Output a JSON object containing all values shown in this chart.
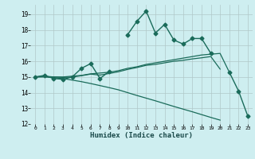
{
  "xlabel": "Humidex (Indice chaleur)",
  "bg_color": "#ceeef0",
  "grid_color": "#b0c8c8",
  "line_color": "#1a6b5a",
  "xlim": [
    -0.5,
    23.5
  ],
  "ylim": [
    12,
    19.6
  ],
  "yticks": [
    12,
    13,
    14,
    15,
    16,
    17,
    18,
    19
  ],
  "xticks": [
    0,
    1,
    2,
    3,
    4,
    5,
    6,
    7,
    8,
    9,
    10,
    11,
    12,
    13,
    14,
    15,
    16,
    17,
    18,
    19,
    20,
    21,
    22,
    23
  ],
  "series": [
    {
      "x": [
        0,
        1,
        2,
        3,
        4,
        5,
        6,
        7,
        8,
        9,
        10,
        11,
        12,
        13,
        14,
        15,
        16,
        17,
        18,
        19,
        20,
        21,
        22,
        23
      ],
      "y": [
        15.0,
        15.1,
        14.9,
        14.85,
        15.0,
        15.55,
        15.85,
        14.9,
        15.35,
        null,
        17.7,
        18.55,
        19.2,
        17.8,
        18.35,
        17.35,
        17.1,
        17.45,
        17.45,
        16.5,
        null,
        15.3,
        14.1,
        12.5
      ],
      "marker": "D",
      "markersize": 2.5,
      "linewidth": 1.0
    },
    {
      "x": [
        0,
        1,
        2,
        3,
        4,
        5,
        6,
        7,
        8,
        9,
        10,
        11,
        12,
        13,
        14,
        15,
        16,
        17,
        18,
        19,
        20,
        21
      ],
      "y": [
        15.0,
        15.05,
        15.0,
        15.0,
        15.05,
        15.1,
        15.2,
        15.25,
        15.3,
        15.4,
        15.55,
        15.65,
        15.8,
        15.9,
        16.0,
        16.1,
        16.2,
        16.3,
        16.4,
        16.45,
        16.5,
        15.3
      ],
      "marker": null,
      "markersize": 0,
      "linewidth": 0.9
    },
    {
      "x": [
        0,
        1,
        2,
        3,
        4,
        5,
        6,
        7,
        8,
        9,
        10,
        11,
        12,
        13,
        14,
        15,
        16,
        17,
        18,
        19,
        20,
        21
      ],
      "y": [
        15.0,
        15.0,
        14.95,
        14.9,
        14.8,
        14.7,
        14.58,
        14.45,
        14.32,
        14.18,
        14.0,
        13.82,
        13.65,
        13.48,
        13.3,
        13.12,
        12.95,
        12.78,
        12.6,
        12.42,
        12.25,
        null
      ],
      "marker": null,
      "markersize": 0,
      "linewidth": 0.9
    },
    {
      "x": [
        0,
        1,
        2,
        3,
        4,
        5,
        6,
        7,
        8,
        9,
        10,
        11,
        12,
        13,
        14,
        15,
        16,
        17,
        18,
        19,
        20,
        21
      ],
      "y": [
        15.0,
        15.02,
        15.0,
        14.97,
        14.99,
        15.08,
        15.18,
        15.12,
        15.22,
        15.33,
        15.48,
        15.6,
        15.74,
        15.8,
        15.9,
        16.0,
        16.06,
        16.15,
        16.22,
        16.3,
        15.5,
        null
      ],
      "marker": null,
      "markersize": 0,
      "linewidth": 0.9
    }
  ]
}
